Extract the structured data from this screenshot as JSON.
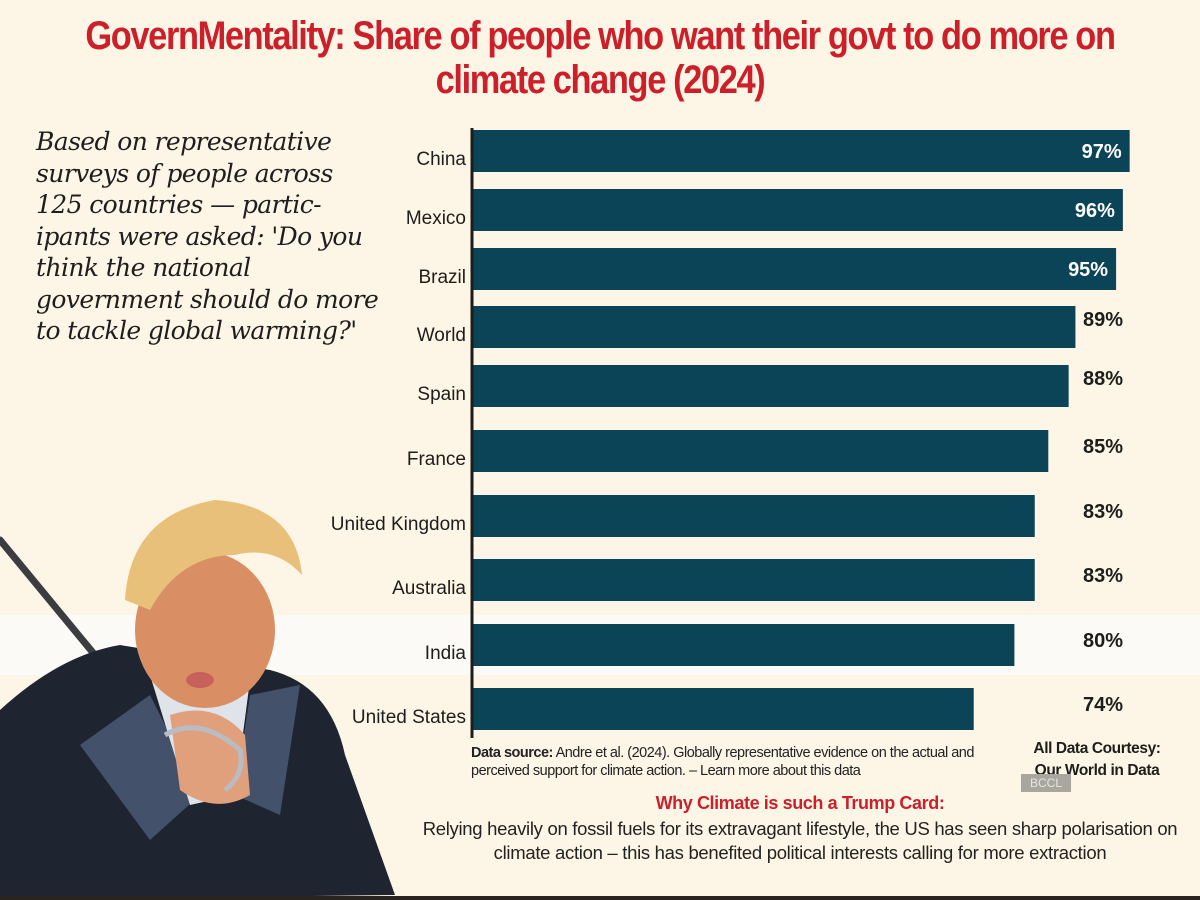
{
  "title": "GovernMentality: Share of people who want their govt to do more on climate change (2024)",
  "intro_text": "Based on representative surveys of  people across 125 countries — partic-ipants were asked: 'Do you think the national government should do more to tackle global warming?'",
  "source": {
    "label": "Data source:",
    "text": " Andre et al. (2024). Globally representative evidence on the actual and perceived support for climate action. – Learn more about this data"
  },
  "courtesy": "All Data Courtesy:  Our World in Data",
  "watermark": "BCCL",
  "why": {
    "heading": "Why Climate is such a Trump Card:",
    "body": "Relying heavily on fossil fuels for its extravagant lifestyle, the US has seen sharp polarisation on climate action – this has benefited political interests calling for more extraction"
  },
  "photo": {
    "icon": "person-with-sword-photo"
  },
  "colors": {
    "bar": "#0b4357",
    "title": "#cc1f2a",
    "background": "#fdf6e6",
    "highlight_row": "#fbfaf6"
  },
  "chart_data": {
    "type": "bar",
    "orientation": "horizontal",
    "title": "GovernMentality: Share of people who want their govt to do more on climate change (2024)",
    "xlabel": "",
    "ylabel": "",
    "categories": [
      "China",
      "Mexico",
      "Brazil",
      "World",
      "Spain",
      "France",
      "United Kingdom",
      "Australia",
      "India",
      "United States"
    ],
    "values": [
      97,
      96,
      95,
      89,
      88,
      85,
      83,
      83,
      80,
      74
    ],
    "labels": [
      "97%",
      "96%",
      "95%",
      "89%",
      "88%",
      "85%",
      "83%",
      "83%",
      "80%",
      "74%"
    ],
    "label_inside": [
      true,
      true,
      true,
      false,
      false,
      false,
      false,
      false,
      false,
      false
    ],
    "highlighted_category": "India",
    "xlim": [
      0,
      100
    ],
    "grid": false,
    "legend": "none",
    "unit": "%"
  }
}
